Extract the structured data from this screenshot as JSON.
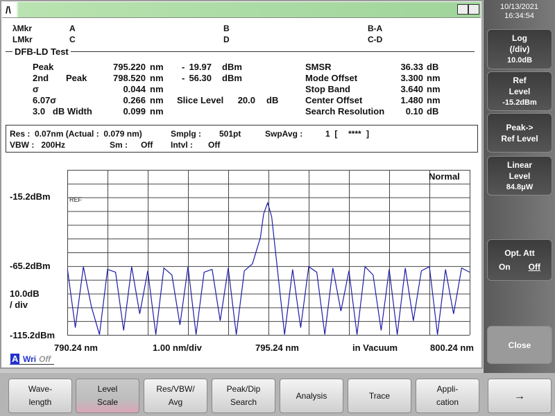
{
  "header": {
    "datetime": [
      "10/13/2021",
      "16:34:54"
    ]
  },
  "markers": {
    "row1": [
      "λMkr",
      "A",
      "B",
      "B-A"
    ],
    "row2": [
      "LMkr",
      "C",
      "D",
      "C-D"
    ]
  },
  "section_title": "DFB-LD Test",
  "results": {
    "left": [
      {
        "label": "Peak",
        "value": "795.220",
        "unit": "nm"
      },
      {
        "label": "2nd",
        "label2": "Peak",
        "value": "798.520",
        "unit": "nm"
      },
      {
        "label": "σ",
        "value": "0.044",
        "unit": "nm"
      },
      {
        "label": "6.07σ",
        "value": "0.266",
        "unit": "nm"
      },
      {
        "label": "3.0   dB Width",
        "value": "0.099",
        "unit": "nm"
      }
    ],
    "middle": [
      {
        "label": "-",
        "value": "19.97",
        "unit": "dBm"
      },
      {
        "label": "-",
        "value": "56.30",
        "unit": "dBm"
      },
      {
        "label": "Slice Level",
        "value": "20.0",
        "unit": "dB"
      }
    ],
    "right": [
      {
        "label": "SMSR",
        "value": "36.33",
        "unit": "dB"
      },
      {
        "label": "Mode Offset",
        "value": "3.300",
        "unit": "nm"
      },
      {
        "label": "Stop Band",
        "value": "3.640",
        "unit": "nm"
      },
      {
        "label": "Center Offset",
        "value": "1.480",
        "unit": "nm"
      },
      {
        "label": "Search Resolution",
        "value": "0.10",
        "unit": "dB"
      }
    ]
  },
  "settings": {
    "row1": [
      "Res :  0.07nm (Actual :  0.079 nm)",
      "Smplg :",
      "501pt",
      "SwpAvg :",
      "1  [",
      "****",
      "]"
    ],
    "row2": [
      "VBW :   200Hz",
      "Sm :",
      "Off",
      "Intvl :",
      "Off"
    ]
  },
  "plot": {
    "mode": "Normal",
    "ref_marker": "REF",
    "y_labels": [
      "-15.2dBm",
      "-65.2dBm",
      "10.0dB",
      "/ div",
      "-115.2dBm"
    ],
    "x_labels": [
      "790.24 nm",
      "1.00 nm/div",
      "795.24 nm",
      "in Vacuum",
      "800.24 nm"
    ],
    "trace_indicator": [
      "A",
      "Wri",
      "Off"
    ]
  },
  "trace": {
    "color": "#1c1ca8",
    "xlim": [
      790.24,
      800.24
    ],
    "ylim": [
      -115.2,
      3.8
    ],
    "x": [
      790.24,
      790.44,
      790.64,
      790.84,
      791.04,
      791.24,
      791.44,
      791.64,
      791.84,
      792.04,
      792.24,
      792.44,
      792.64,
      792.84,
      793.04,
      793.24,
      793.44,
      793.64,
      793.84,
      794.04,
      794.24,
      794.44,
      794.64,
      794.84,
      795.04,
      795.12,
      795.22,
      795.32,
      795.44,
      795.64,
      795.84,
      796.04,
      796.24,
      796.44,
      796.64,
      796.84,
      797.04,
      797.24,
      797.44,
      797.64,
      797.84,
      798.04,
      798.24,
      798.44,
      798.64,
      798.84,
      799.04,
      799.24,
      799.44,
      799.64,
      799.84,
      800.04,
      800.24
    ],
    "values": [
      -67,
      -110,
      -66,
      -95,
      -115,
      -68,
      -70,
      -112,
      -66,
      -100,
      -69,
      -115,
      -67,
      -72,
      -108,
      -66,
      -115,
      -70,
      -68,
      -105,
      -67,
      -115,
      -69,
      -64,
      -45,
      -28,
      -19.97,
      -30,
      -62,
      -115,
      -68,
      -110,
      -66,
      -70,
      -115,
      -67,
      -98,
      -69,
      -115,
      -66,
      -72,
      -112,
      -68,
      -115,
      -67,
      -105,
      -69,
      -66,
      -115,
      -68,
      -100,
      -67,
      -70
    ]
  },
  "softkeys": [
    {
      "lines": [
        "Log",
        "(/div)",
        "10.0dB"
      ]
    },
    {
      "lines": [
        "Ref",
        "Level",
        "-15.2dBm"
      ]
    },
    {
      "lines": [
        "Peak->",
        "Ref Level"
      ]
    },
    {
      "lines": [
        "Linear",
        "Level",
        "84.8μW"
      ]
    },
    {
      "lines": [
        "Opt. Att",
        "On",
        "Off"
      ]
    },
    {
      "lines": [
        "Close"
      ]
    }
  ],
  "function_keys": [
    {
      "lines": [
        "Wave-",
        "length"
      ]
    },
    {
      "lines": [
        "Level",
        "Scale"
      ]
    },
    {
      "lines": [
        "Res/VBW/",
        "Avg"
      ]
    },
    {
      "lines": [
        "Peak/Dip",
        "Search"
      ]
    },
    {
      "lines": [
        "Analysis"
      ]
    },
    {
      "lines": [
        "Trace"
      ]
    },
    {
      "lines": [
        "Appli-",
        "cation"
      ]
    },
    {
      "lines": [
        "→"
      ]
    }
  ]
}
